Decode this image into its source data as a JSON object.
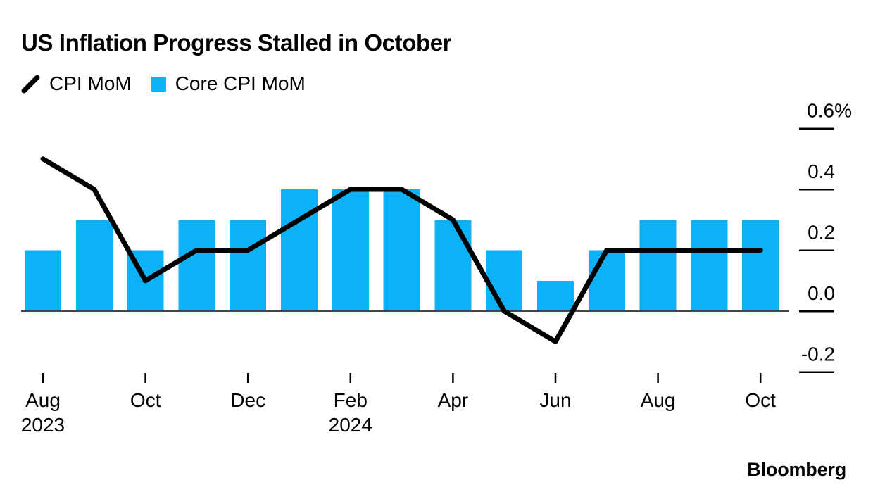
{
  "title": "US Inflation Progress Stalled in October",
  "legend": {
    "items": [
      {
        "label": "CPI MoM",
        "swatch": "line-icon",
        "color": "#000000"
      },
      {
        "label": "Core CPI MoM",
        "swatch": "square-icon",
        "color": "#0DB1F5"
      }
    ]
  },
  "logo": "Bloomberg",
  "chart_data": {
    "type": "bar+line combo",
    "unit": "%",
    "categories": [
      "Aug 2023",
      "Sep 2023",
      "Oct 2023",
      "Nov 2023",
      "Dec 2023",
      "Jan 2024",
      "Feb 2024",
      "Mar 2024",
      "Apr 2024",
      "May 2024",
      "Jun 2024",
      "Jul 2024",
      "Aug 2024",
      "Sep 2024",
      "Oct 2024"
    ],
    "series": [
      {
        "name": "CPI MoM",
        "type": "line",
        "color": "#000000",
        "values": [
          0.5,
          0.4,
          0.1,
          0.2,
          0.2,
          0.3,
          0.4,
          0.4,
          0.3,
          0.0,
          -0.1,
          0.2,
          0.2,
          0.2,
          0.2
        ]
      },
      {
        "name": "Core CPI MoM",
        "type": "bar",
        "color": "#0DB1F5",
        "values": [
          0.2,
          0.3,
          0.2,
          0.3,
          0.3,
          0.4,
          0.4,
          0.4,
          0.3,
          0.2,
          0.1,
          0.2,
          0.3,
          0.3,
          0.3
        ]
      }
    ],
    "x_axis": {
      "ticks": [
        {
          "index": 0,
          "label": "Aug",
          "sublabel": "2023"
        },
        {
          "index": 2,
          "label": "Oct"
        },
        {
          "index": 4,
          "label": "Dec"
        },
        {
          "index": 6,
          "label": "Feb",
          "sublabel": "2024"
        },
        {
          "index": 8,
          "label": "Apr"
        },
        {
          "index": 10,
          "label": "Jun"
        },
        {
          "index": 12,
          "label": "Aug"
        },
        {
          "index": 14,
          "label": "Oct"
        }
      ]
    },
    "y_axis": {
      "ticks": [
        {
          "value": 0.6,
          "label": "0.6%"
        },
        {
          "value": 0.4,
          "label": "0.4"
        },
        {
          "value": 0.2,
          "label": "0.2"
        },
        {
          "value": 0.0,
          "label": "0.0"
        },
        {
          "value": -0.2,
          "label": "-0.2"
        }
      ],
      "range": [
        -0.25,
        0.7
      ]
    },
    "grid": false,
    "legend_position": "top-left",
    "baseline_color": "#454545",
    "axis_text_color": "#000000"
  }
}
